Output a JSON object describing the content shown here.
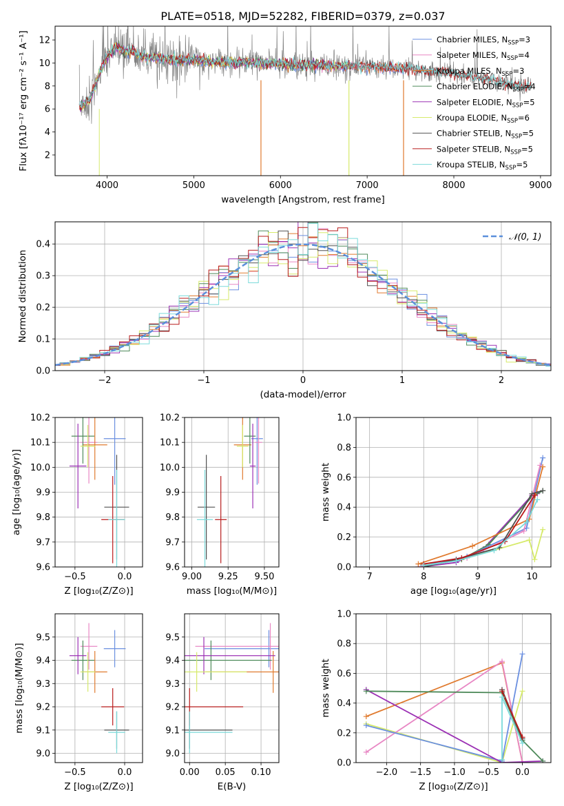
{
  "colors": {
    "chabrier_miles": "#6a8fe0",
    "salpeter_miles": "#e887c4",
    "kroupa_miles": "#e07a2e",
    "chabrier_elodie": "#4e8a5a",
    "salpeter_elodie": "#9b30b4",
    "kroupa_elodie": "#d6ea6a",
    "chabrier_stelib": "#505050",
    "salpeter_stelib": "#b81a1a",
    "kroupa_stelib": "#7adada",
    "gray_spectrum": "#808080",
    "normal_curve": "#5b8fdb"
  },
  "chart_data": [
    {
      "type": "line",
      "title": "PLATE=0518, MJD=52282, FIBERID=0379, z=0.037",
      "xlabel": "wavelength [Angstrom, rest frame]",
      "ylabel": "Flux [fλ10⁻¹⁷ erg cm⁻² s⁻¹ A⁻¹]",
      "xlim": [
        3400,
        9120
      ],
      "ylim": [
        0.2,
        13.2
      ],
      "xticks": [
        "4000",
        "5000",
        "6000",
        "7000",
        "8000",
        "9000"
      ],
      "yticks": [
        "2",
        "4",
        "6",
        "8",
        "10",
        "12"
      ],
      "grid": false,
      "legend_position": "top-right",
      "data_x": [
        3700,
        3800,
        3900,
        4000,
        4100,
        4200,
        4300,
        4400,
        4500,
        4600,
        4800,
        5000,
        5200,
        5400,
        5600,
        5800,
        6000,
        6200,
        6400,
        6600,
        6800,
        7000,
        7200,
        7400,
        7600,
        7800,
        8000,
        8200,
        8400,
        8600,
        8800
      ],
      "data_y": [
        6.2,
        6.8,
        8.8,
        10.6,
        11.4,
        11.0,
        11.1,
        10.5,
        10.5,
        10.4,
        10.2,
        10.3,
        10.1,
        10.0,
        10.1,
        9.9,
        9.9,
        9.8,
        9.8,
        9.7,
        9.7,
        9.7,
        9.6,
        9.5,
        9.4,
        9.2,
        9.0,
        8.8,
        8.5,
        8.2,
        7.9
      ],
      "series": [
        {
          "name": "Chabrier MILES, N",
          "nssp": "=3",
          "color_key": "chabrier_miles",
          "xmax": 7450
        },
        {
          "name": "Salpeter MILES, N",
          "nssp": "=4",
          "color_key": "salpeter_miles",
          "xmax": 7450
        },
        {
          "name": "Kroupa MILES, N",
          "nssp": "=3",
          "color_key": "kroupa_miles",
          "xmax": 7450
        },
        {
          "name": "Chabrier ELODIE, N",
          "nssp": "=4",
          "color_key": "chabrier_elodie",
          "xmax": 6790
        },
        {
          "name": "Salpeter ELODIE, N",
          "nssp": "=5",
          "color_key": "salpeter_elodie",
          "xmax": 6790
        },
        {
          "name": "Kroupa ELODIE, N",
          "nssp": "=6",
          "color_key": "kroupa_elodie",
          "xmax": 6790
        },
        {
          "name": "Chabrier STELIB, N",
          "nssp": "=5",
          "color_key": "chabrier_stelib",
          "xmax": 8900
        },
        {
          "name": "Salpeter STELIB, N",
          "nssp": "=5",
          "color_key": "salpeter_stelib",
          "xmax": 8900
        },
        {
          "name": "Kroupa STELIB, N",
          "nssp": "=5",
          "color_key": "kroupa_stelib",
          "xmax": 8900
        }
      ],
      "nssp_subscript": "SSP"
    },
    {
      "type": "line",
      "xlabel": "(data-model)/error",
      "ylabel": "Normed distribution",
      "xlim": [
        -2.5,
        2.5
      ],
      "ylim": [
        0,
        0.47
      ],
      "xticks": [
        "−2",
        "−1",
        "0",
        "1",
        "2"
      ],
      "yticks": [
        "0.0",
        "0.1",
        "0.2",
        "0.3",
        "0.4"
      ],
      "grid": true,
      "legend_position": "top-right",
      "legend_label": "𝒩(0, 1)",
      "bin_width": 0.1
    },
    {
      "type": "scatter",
      "xlabel": "Z [log₁₀(Z/Z⊙)]",
      "ylabel": "age  [log₁₀(age/yr)]",
      "xlim": [
        -0.7,
        0.18
      ],
      "ylim": [
        9.6,
        10.2
      ],
      "xticks": [
        "−0.5",
        "0.0"
      ],
      "yticks": [
        "9.6",
        "9.7",
        "9.8",
        "9.9",
        "10.0",
        "10.1",
        "10.2"
      ],
      "grid": true
    },
    {
      "type": "scatter",
      "xlabel": "mass [log₁₀(M/M⊙)]",
      "xlim": [
        8.95,
        9.6
      ],
      "ylim": [
        9.6,
        10.2
      ],
      "xticks": [
        "9.00",
        "9.25",
        "9.50"
      ],
      "yticks": [
        "9.6",
        "9.7",
        "9.8",
        "9.9",
        "10.0",
        "10.1",
        "10.2"
      ],
      "grid": true
    },
    {
      "type": "line",
      "xlabel": "age  [log₁₀(age/yr)]",
      "ylabel": "mass weight",
      "xlim": [
        6.75,
        10.35
      ],
      "ylim": [
        0,
        1
      ],
      "xticks": [
        "7",
        "8",
        "9",
        "10"
      ],
      "yticks": [
        "0.0",
        "0.2",
        "0.4",
        "0.6",
        "0.8",
        "1.0"
      ],
      "grid": true
    },
    {
      "type": "scatter",
      "xlabel": "Z [log₁₀(Z/Z⊙)]",
      "ylabel": "mass [log₁₀(M/M⊙)]",
      "xlim": [
        -0.7,
        0.18
      ],
      "ylim": [
        8.96,
        9.6
      ],
      "xticks": [
        "−0.5",
        "0.0"
      ],
      "yticks": [
        "9.0",
        "9.1",
        "9.2",
        "9.3",
        "9.4",
        "9.5"
      ],
      "grid": true
    },
    {
      "type": "scatter",
      "xlabel": "E(B-V)",
      "xlim": [
        -0.007,
        0.125
      ],
      "ylim": [
        8.96,
        9.6
      ],
      "xticks": [
        "0.00",
        "0.05",
        "0.10"
      ],
      "yticks": [
        "9.0",
        "9.1",
        "9.2",
        "9.3",
        "9.4",
        "9.5"
      ],
      "grid": true
    },
    {
      "type": "line",
      "xlabel": "Z [log₁₀(Z/Z⊙)]",
      "ylabel": "mass weight",
      "xlim": [
        -2.45,
        0.42
      ],
      "ylim": [
        0,
        1
      ],
      "xticks": [
        "−2.0",
        "−1.5",
        "−1.0",
        "−0.5",
        "0.0"
      ],
      "yticks": [
        "0.0",
        "0.2",
        "0.4",
        "0.6",
        "0.8",
        "1.0"
      ],
      "grid": true
    }
  ],
  "fits": [
    {
      "key": "chabrier_miles",
      "Z": -0.1,
      "Zerr": 0.22,
      "age": 10.115,
      "ageErr": 0.37,
      "mass": 9.45,
      "massErr": 0.08,
      "mErr": 0.16,
      "ebv": 0.111,
      "ebvErr": 0.18
    },
    {
      "key": "salpeter_miles",
      "Z": -0.36,
      "Zerr": 0.17,
      "age": 10.1,
      "ageErr": 0.33,
      "mass": 9.46,
      "massErr": 0.05,
      "mErr": 0.2,
      "ebv": 0.113,
      "ebvErr": 0.21
    },
    {
      "key": "kroupa_miles",
      "Z": -0.3,
      "Zerr": 0.25,
      "age": 10.09,
      "ageErr": 0.28,
      "mass": 9.35,
      "massErr": 0.12,
      "mErr": 0.18,
      "ebv": 0.117,
      "ebvErr": 0.19
    },
    {
      "key": "chabrier_elodie",
      "Z": -0.42,
      "Zerr": 0.23,
      "age": 10.125,
      "ageErr": 0.22,
      "mass": 9.4,
      "massErr": 0.08,
      "mErr": 0.17,
      "ebv": 0.03,
      "ebvErr": 0.17
    },
    {
      "key": "salpeter_elodie",
      "Z": -0.47,
      "Zerr": 0.17,
      "age": 10.005,
      "ageErr": 0.34,
      "mass": 9.42,
      "massErr": 0.04,
      "mErr": 0.16,
      "ebv": 0.02,
      "ebvErr": 0.2
    },
    {
      "key": "kroupa_elodie",
      "Z": -0.37,
      "Zerr": 0.15,
      "age": 10.085,
      "ageErr": 0.17,
      "mass": 9.35,
      "massErr": 0.08,
      "mErr": 0.17,
      "ebv": 0.01,
      "ebvErr": 0.14
    },
    {
      "key": "chabrier_stelib",
      "Z": -0.08,
      "Zerr": 0.25,
      "age": 9.84,
      "ageErr": 0.42,
      "mass": 9.1,
      "massErr": 0.12,
      "mErr": 0.16,
      "ebv": 0.0,
      "ebvErr": 0.12
    },
    {
      "key": "salpeter_stelib",
      "Z": -0.12,
      "Zerr": 0.23,
      "age": 9.79,
      "ageErr": 0.35,
      "mass": 9.2,
      "massErr": 0.08,
      "mErr": 0.16,
      "ebv": 0.0,
      "ebvErr": 0.15
    },
    {
      "key": "kroupa_stelib",
      "Z": -0.08,
      "Zerr": 0.17,
      "age": 9.79,
      "ageErr": 0.4,
      "mass": 9.09,
      "massErr": 0.11,
      "mErr": 0.18,
      "ebv": 0.0,
      "ebvErr": 0.12
    }
  ],
  "mass_weight_age": [
    {
      "key": "kroupa_elodie",
      "ages": [
        7.95,
        8.7,
        9.95,
        10.05,
        10.2
      ],
      "w": [
        0.0,
        0.05,
        0.18,
        0.05,
        0.25
      ]
    },
    {
      "key": "salpeter_elodie",
      "ages": [
        7.95,
        8.6,
        9.1,
        10.0,
        10.1
      ],
      "w": [
        0.0,
        0.03,
        0.12,
        0.48,
        0.49
      ]
    },
    {
      "key": "chabrier_elodie",
      "ages": [
        7.95,
        8.7,
        9.2,
        10.0,
        10.2
      ],
      "w": [
        0.0,
        0.05,
        0.15,
        0.47,
        0.51
      ]
    },
    {
      "key": "chabrier_miles",
      "ages": [
        7.9,
        8.8,
        9.9,
        10.2
      ],
      "w": [
        0.0,
        0.07,
        0.26,
        0.73
      ]
    },
    {
      "key": "salpeter_miles",
      "ages": [
        7.9,
        8.8,
        9.85,
        10.15
      ],
      "w": [
        0.0,
        0.06,
        0.24,
        0.68
      ]
    },
    {
      "key": "kroupa_miles",
      "ages": [
        7.9,
        8.9,
        9.95,
        10.2
      ],
      "w": [
        0.02,
        0.14,
        0.32,
        0.67
      ]
    },
    {
      "key": "chabrier_stelib",
      "ages": [
        8.0,
        8.6,
        9.4,
        10.0,
        10.2
      ],
      "w": [
        0.0,
        0.05,
        0.13,
        0.49,
        0.51
      ]
    },
    {
      "key": "salpeter_stelib",
      "ages": [
        8.0,
        8.7,
        9.5,
        10.05
      ],
      "w": [
        0.02,
        0.06,
        0.17,
        0.48
      ]
    },
    {
      "key": "kroupa_stelib",
      "ages": [
        8.0,
        8.6,
        9.3,
        9.9,
        10.1
      ],
      "w": [
        0.01,
        0.04,
        0.11,
        0.3,
        0.45
      ]
    }
  ],
  "mass_weight_z": [
    {
      "key": "kroupa_elodie",
      "zs": [
        -2.3,
        -0.3,
        0.0
      ],
      "w": [
        0.26,
        0.0,
        0.48
      ]
    },
    {
      "key": "kroupa_miles",
      "zs": [
        -2.3,
        -0.3,
        0.0
      ],
      "w": [
        0.31,
        0.67,
        0.0
      ]
    },
    {
      "key": "salpeter_miles",
      "zs": [
        -2.3,
        -0.3,
        0.0
      ],
      "w": [
        0.07,
        0.68,
        0.0
      ]
    },
    {
      "key": "chabrier_miles",
      "zs": [
        -2.3,
        -0.3,
        0.0
      ],
      "w": [
        0.25,
        0.01,
        0.73
      ]
    },
    {
      "key": "salpeter_elodie",
      "zs": [
        -2.3,
        -0.3,
        0.3
      ],
      "w": [
        0.49,
        0.0,
        0.01
      ]
    },
    {
      "key": "chabrier_elodie",
      "zs": [
        -2.3,
        -0.3,
        0.0,
        0.3
      ],
      "w": [
        0.48,
        0.47,
        0.15,
        0.01
      ]
    },
    {
      "key": "chabrier_stelib",
      "zs": [
        -0.3,
        0.0
      ],
      "w": [
        0.49,
        0.16
      ]
    },
    {
      "key": "salpeter_stelib",
      "zs": [
        -0.3,
        0.0
      ],
      "w": [
        0.48,
        0.17
      ]
    },
    {
      "key": "kroupa_stelib",
      "zs": [
        -0.3,
        -0.3,
        0.0
      ],
      "w": [
        0.02,
        0.44,
        0.13
      ]
    }
  ]
}
